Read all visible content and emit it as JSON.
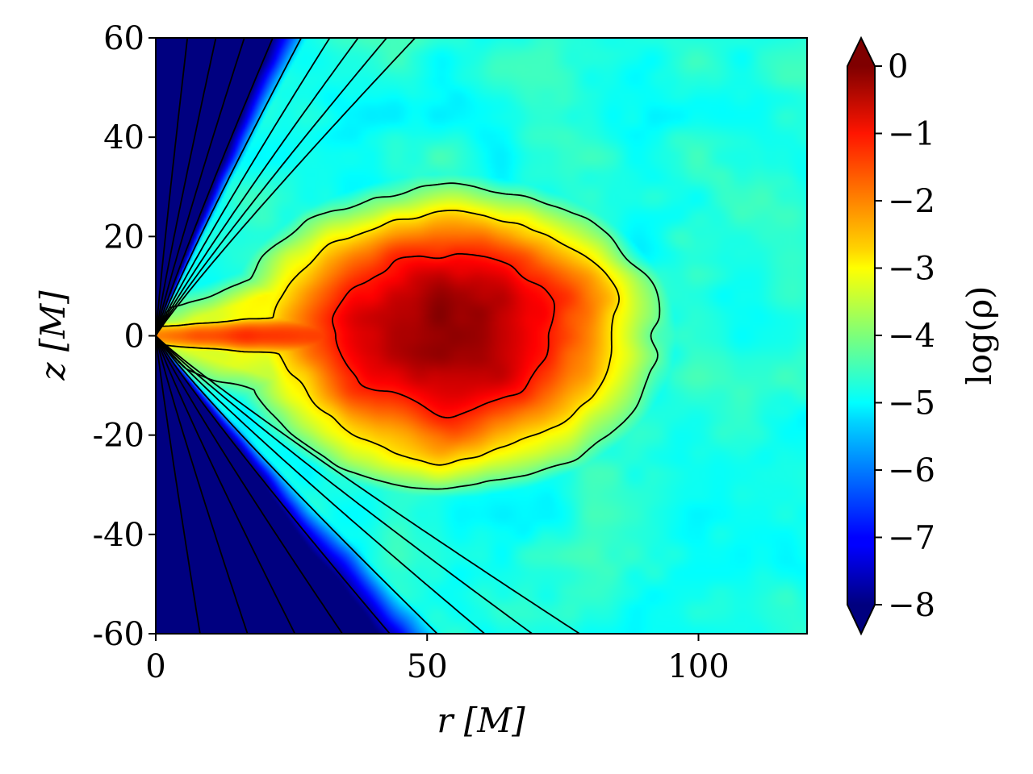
{
  "chart_data": {
    "type": "heatmap",
    "title": "",
    "xlabel": "r [M]",
    "ylabel": "z [M]",
    "xlim": [
      0,
      120
    ],
    "ylim": [
      -60,
      60
    ],
    "x_ticks": [
      0,
      50,
      100
    ],
    "x_tick_labels": [
      "0",
      "50",
      "100"
    ],
    "y_ticks": [
      60,
      40,
      20,
      0,
      -20,
      -40,
      -60
    ],
    "y_tick_labels": [
      "60",
      "40",
      "20",
      "0",
      "-20",
      "-40",
      "-60"
    ],
    "colorbar": {
      "label": "log(ρ)",
      "range": [
        -8,
        0
      ],
      "extend": "both",
      "colormap": "jet",
      "ticks": [
        0,
        -1,
        -2,
        -3,
        -4,
        -5,
        -6,
        -7,
        -8
      ],
      "tick_labels": [
        "0",
        "−1",
        "−2",
        "−3",
        "−4",
        "−5",
        "−6",
        "−7",
        "−8"
      ]
    },
    "field_description": {
      "peak_location": {
        "r": 54,
        "z": 0
      },
      "peak_value": -0.2,
      "background_value": -4.8,
      "funnel_value": -8
    },
    "contours": {
      "color": "#000000",
      "funnel_field_lines": 9
    }
  },
  "colors": {
    "axis": "#000000",
    "contour": "#000000",
    "background": "#ffffff"
  }
}
